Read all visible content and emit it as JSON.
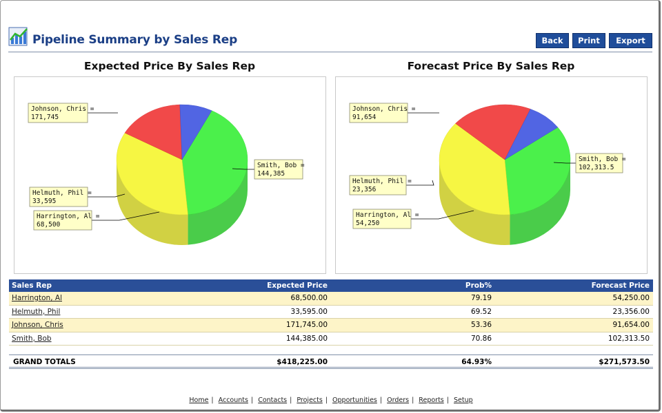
{
  "header": {
    "title": "Pipeline Summary by Sales Rep",
    "buttons": {
      "back": "Back",
      "print": "Print",
      "export": "Export"
    }
  },
  "charts": {
    "left_title": "Expected Price By Sales Rep",
    "right_title": "Forecast Price By Sales Rep"
  },
  "colors": {
    "header_bar": "#2a4f98",
    "button": "#1f4d9a",
    "title": "#1b3f86",
    "row_highlight": "#fdf4c8",
    "callout_bg": "#ffffc8"
  },
  "chart_data": [
    {
      "type": "pie",
      "title": "Expected Price By Sales Rep",
      "labels": [
        "Johnson, Chris",
        "Smith, Bob",
        "Harrington, Al",
        "Helmuth, Phil"
      ],
      "values": [
        171745,
        144385,
        68500,
        33595
      ],
      "display_values": [
        "171,745",
        "144,385",
        "68,500",
        "33,595"
      ],
      "colors": [
        "#33ee33",
        "#f5f52a",
        "#f03030",
        "#3a50e0"
      ]
    },
    {
      "type": "pie",
      "title": "Forecast Price By Sales Rep",
      "labels": [
        "Johnson, Chris",
        "Smith, Bob",
        "Harrington, Al",
        "Helmuth, Phil"
      ],
      "values": [
        91654,
        102313.5,
        54250,
        23356
      ],
      "display_values": [
        "91,654",
        "102,313.5",
        "54,250",
        "23,356"
      ],
      "colors": [
        "#33ee33",
        "#f5f52a",
        "#f03030",
        "#3a50e0"
      ]
    }
  ],
  "table": {
    "headers": {
      "rep": "Sales Rep",
      "expected": "Expected Price",
      "prob": "Prob%",
      "forecast": "Forecast Price"
    },
    "rows": [
      {
        "rep": "Harrington, Al",
        "expected": "68,500.00",
        "prob": "79.19",
        "forecast": "54,250.00"
      },
      {
        "rep": "Helmuth, Phil",
        "expected": "33,595.00",
        "prob": "69.52",
        "forecast": "23,356.00"
      },
      {
        "rep": "Johnson, Chris",
        "expected": "171,745.00",
        "prob": "53.36",
        "forecast": "91,654.00"
      },
      {
        "rep": "Smith, Bob",
        "expected": "144,385.00",
        "prob": "70.86",
        "forecast": "102,313.50"
      }
    ],
    "totals": {
      "label": "GRAND TOTALS",
      "expected": "$418,225.00",
      "prob": "64.93%",
      "forecast": "$271,573.50"
    }
  },
  "footer": {
    "links": [
      "Home",
      "Accounts",
      "Contacts",
      "Projects",
      "Opportunities",
      "Orders",
      "Reports",
      "Setup"
    ]
  }
}
